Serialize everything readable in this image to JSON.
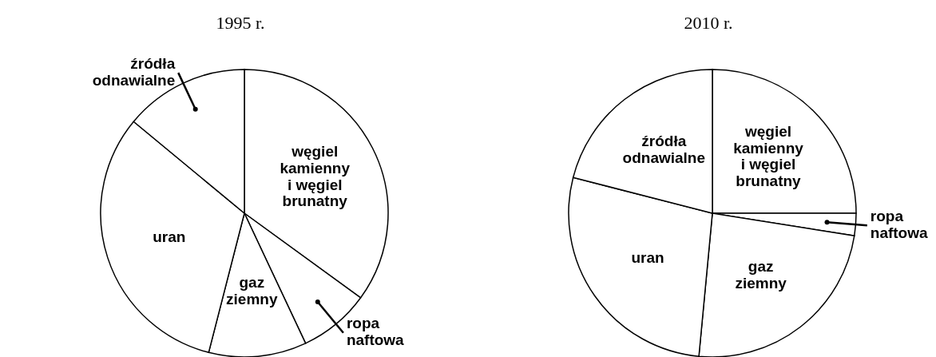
{
  "chart_data": [
    {
      "type": "pie",
      "title": "1995 r.",
      "categories": [
        "węgiel kamienny i węgiel brunatny",
        "ropa naftowa",
        "gaz ziemny",
        "uran",
        "źródła odnawialne"
      ],
      "values": [
        35,
        8,
        11,
        32,
        14
      ],
      "colors": [
        "#ffffff",
        "#ffffff",
        "#ffffff",
        "#ffffff",
        "#ffffff"
      ]
    },
    {
      "type": "pie",
      "title": "2010 r.",
      "categories": [
        "węgiel kamienny i węgiel brunatny",
        "ropa naftowa",
        "gaz ziemny",
        "uran",
        "źródła odnawialne"
      ],
      "values": [
        25,
        2.5,
        24,
        27.5,
        21
      ],
      "colors": [
        "#ffffff",
        "#ffffff",
        "#ffffff",
        "#ffffff",
        "#ffffff"
      ]
    }
  ]
}
